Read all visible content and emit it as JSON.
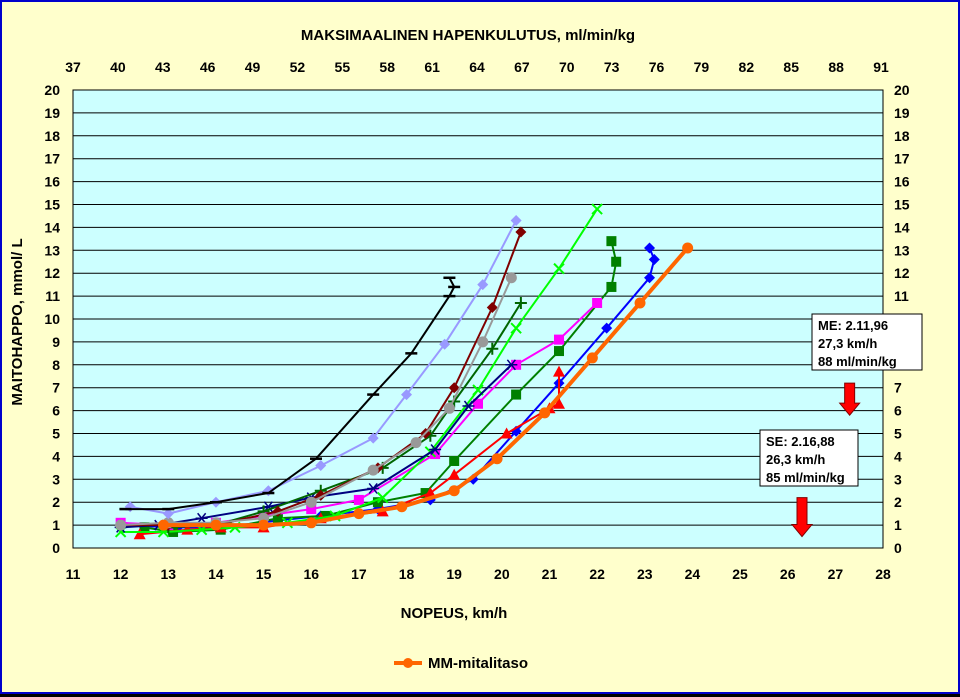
{
  "chart_data": {
    "type": "line",
    "title": "MAKSIMAALINEN HAPENKULUTUS, ml/min/kg",
    "xlabel": "NOPEUS, km/h",
    "ylabel": "MAITOHAPPO, mmol/ L",
    "xlim": [
      11,
      28
    ],
    "ylim": [
      0,
      20
    ],
    "x_ticks": [
      "11",
      "12",
      "13",
      "14",
      "15",
      "16",
      "17",
      "18",
      "19",
      "20",
      "21",
      "22",
      "23",
      "24",
      "25",
      "26",
      "27",
      "28"
    ],
    "top_ticks": [
      "37",
      "40",
      "43",
      "46",
      "49",
      "52",
      "55",
      "58",
      "61",
      "64",
      "67",
      "70",
      "73",
      "76",
      "79",
      "82",
      "85",
      "88",
      "91"
    ],
    "y_ticks": [
      "0",
      "1",
      "2",
      "3",
      "4",
      "5",
      "6",
      "7",
      "8",
      "9",
      "10",
      "11",
      "12",
      "13",
      "14",
      "15",
      "16",
      "17",
      "18",
      "19",
      "20"
    ],
    "y_ticks_right": [
      "0",
      "1",
      "2",
      "3",
      "4",
      "5",
      "6",
      "7",
      "",
      "",
      "",
      "11",
      "12",
      "13",
      "14",
      "15",
      "16",
      "17",
      "18",
      "19",
      "20"
    ],
    "grid": true,
    "legend": {
      "position": "bottom",
      "entries": [
        "MM-mitalitaso"
      ]
    },
    "series": [
      {
        "name": "MM-mitalitaso",
        "color": "#ff6600",
        "marker": "circle",
        "width": 4,
        "x": [
          12.9,
          14.0,
          15.0,
          16.0,
          17.0,
          17.9,
          19.0,
          19.9,
          20.9,
          21.9,
          22.9,
          23.9
        ],
        "y": [
          1.0,
          1.0,
          1.0,
          1.1,
          1.5,
          1.8,
          2.5,
          3.9,
          5.9,
          8.3,
          10.7,
          13.1
        ]
      },
      {
        "color": "#0000ff",
        "marker": "diamond",
        "x": [
          12.0,
          13.2,
          14.1,
          15.3,
          16.2,
          17.4,
          18.5,
          19.4,
          20.3,
          21.2,
          22.2,
          23.1,
          23.2,
          23.1
        ],
        "y": [
          1.0,
          0.9,
          0.9,
          1.2,
          1.4,
          1.7,
          2.1,
          3.0,
          5.1,
          7.2,
          9.6,
          11.8,
          12.6,
          13.1
        ]
      },
      {
        "color": "#008000",
        "marker": "square",
        "x": [
          12.5,
          13.1,
          14.1,
          15.3,
          16.3,
          17.4,
          18.4,
          19.0,
          20.3,
          21.2,
          22.3,
          22.4,
          22.3
        ],
        "y": [
          0.9,
          0.7,
          0.8,
          1.3,
          1.4,
          2.0,
          2.4,
          3.8,
          6.7,
          8.6,
          11.4,
          12.5,
          13.4
        ]
      },
      {
        "color": "#ff0000",
        "marker": "triangle",
        "x": [
          12.4,
          13.4,
          14.1,
          15.0,
          16.2,
          17.5,
          18.5,
          19.0,
          20.1,
          21.0,
          21.2,
          21.2
        ],
        "y": [
          0.6,
          0.8,
          0.9,
          0.9,
          1.3,
          1.6,
          2.4,
          3.2,
          5.0,
          6.1,
          6.3,
          7.7
        ]
      },
      {
        "color": "#ff00ff",
        "marker": "square",
        "x": [
          12.0,
          13.0,
          14.0,
          15.0,
          16.0,
          17.0,
          18.6,
          19.5,
          20.3,
          21.2,
          22.0
        ],
        "y": [
          1.1,
          1.0,
          1.1,
          1.4,
          1.7,
          2.1,
          4.1,
          6.3,
          8.0,
          9.1,
          10.7
        ]
      },
      {
        "color": "#00ff00",
        "marker": "x",
        "x": [
          12.0,
          12.9,
          13.7,
          14.4,
          15.5,
          16.5,
          17.5,
          18.5,
          19.5,
          20.3,
          21.2,
          22.0
        ],
        "y": [
          0.7,
          0.7,
          0.8,
          0.9,
          1.1,
          1.4,
          2.2,
          4.2,
          6.9,
          9.6,
          12.2,
          14.8
        ]
      },
      {
        "color": "#000080",
        "marker": "asterisk",
        "x": [
          12.0,
          12.8,
          13.7,
          15.1,
          16.0,
          17.3,
          18.6,
          19.3,
          20.2
        ],
        "y": [
          0.9,
          1.0,
          1.3,
          1.8,
          2.2,
          2.6,
          4.3,
          6.2,
          8.0
        ]
      },
      {
        "color": "#006600",
        "marker": "plus",
        "x": [
          13.0,
          14.0,
          15.0,
          16.2,
          17.5,
          18.5,
          19.0,
          19.8,
          20.4
        ],
        "y": [
          0.9,
          1.0,
          1.6,
          2.5,
          3.5,
          4.9,
          6.4,
          8.7,
          10.7
        ]
      },
      {
        "color": "#800000",
        "marker": "diamond",
        "x": [
          12.0,
          13.0,
          14.0,
          15.3,
          16.2,
          17.4,
          18.4,
          19.0,
          19.8,
          20.4
        ],
        "y": [
          1.0,
          1.0,
          1.0,
          1.6,
          2.3,
          3.5,
          5.0,
          7.0,
          10.5,
          13.8
        ]
      },
      {
        "color": "#999999",
        "marker": "circle",
        "x": [
          12.0,
          13.0,
          14.0,
          15.0,
          16.0,
          17.3,
          18.2,
          18.9,
          19.6,
          20.2
        ],
        "y": [
          1.0,
          1.1,
          1.1,
          1.3,
          2.0,
          3.4,
          4.6,
          6.1,
          9.0,
          11.8
        ]
      },
      {
        "color": "#9999ff",
        "marker": "diamond",
        "x": [
          12.2,
          13.0,
          14.0,
          15.1,
          16.2,
          17.3,
          18.0,
          18.8,
          19.6,
          20.3
        ],
        "y": [
          1.8,
          1.5,
          2.0,
          2.5,
          3.6,
          4.8,
          6.7,
          8.9,
          11.5,
          14.3
        ]
      },
      {
        "color": "#000000",
        "marker": "dash",
        "x": [
          12.1,
          13.0,
          14.0,
          15.1,
          16.1,
          17.3,
          18.1,
          18.9,
          19.0,
          18.9
        ],
        "y": [
          1.7,
          1.7,
          2.0,
          2.4,
          3.9,
          6.7,
          8.5,
          11.0,
          11.4,
          11.8
        ]
      }
    ],
    "annotations": [
      {
        "lines": [
          "ME: 2.11,96",
          "27,3 km/h",
          "88 ml/min/kg"
        ],
        "arrow_x": 27.3,
        "arrow_from": 7.2,
        "arrow_to": 5.8
      },
      {
        "lines": [
          "SE: 2.16,88",
          "26,3 km/h",
          "85 ml/min/kg"
        ],
        "arrow_x": 26.3,
        "arrow_from": 2.2,
        "arrow_to": 0.5
      }
    ]
  }
}
